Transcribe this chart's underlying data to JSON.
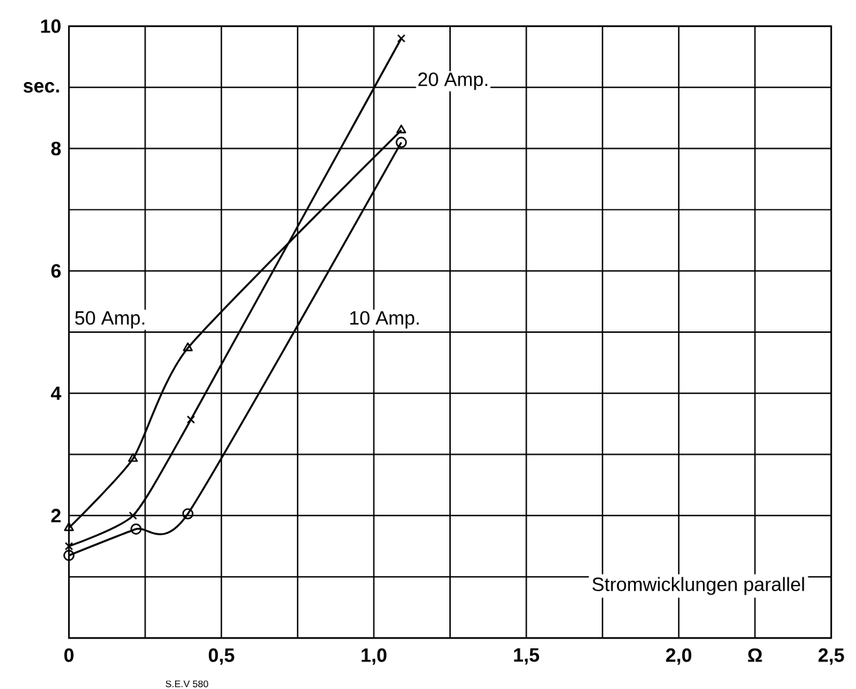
{
  "chart_data": {
    "type": "line",
    "ylabel": "sec.",
    "xlim": [
      0,
      2.5
    ],
    "ylim": [
      0,
      10
    ],
    "xticks": [
      0,
      {
        "value": 0.25,
        "label": null
      },
      {
        "value": 0.5,
        "label": "0,5"
      },
      {
        "value": 0.75,
        "label": null
      },
      {
        "value": 1.0,
        "label": "1,0"
      },
      {
        "value": 1.25,
        "label": null
      },
      {
        "value": 1.5,
        "label": "1,5"
      },
      {
        "value": 1.75,
        "label": null
      },
      {
        "value": 2.0,
        "label": "2,0"
      },
      {
        "value": 2.25,
        "label": "Ω"
      },
      {
        "value": 2.5,
        "label": "2,5"
      }
    ],
    "yticks": [
      {
        "value": 0,
        "label": null
      },
      {
        "value": 1,
        "label": null
      },
      2,
      {
        "value": 3,
        "label": null
      },
      4,
      {
        "value": 5,
        "label": null
      },
      6,
      {
        "value": 7,
        "label": null
      },
      8,
      {
        "value": 9,
        "label": null
      },
      10
    ],
    "grid": true,
    "series": [
      {
        "name": "50 Amp.",
        "color": "#000000",
        "marker": "triangle",
        "x": [
          0,
          0.21,
          0.39,
          1.09
        ],
        "values": [
          1.8,
          2.93,
          4.74,
          8.3
        ]
      },
      {
        "name": "20 Amp.",
        "color": "#000000",
        "marker": "cross",
        "x": [
          0,
          0.21,
          0.4,
          1.09
        ],
        "values": [
          1.5,
          2.0,
          3.57,
          9.8
        ]
      },
      {
        "name": "10 Amp.",
        "color": "#000000",
        "marker": "circle",
        "x": [
          0,
          0.22,
          0.39,
          1.09
        ],
        "values": [
          1.35,
          1.78,
          2.03,
          8.1
        ]
      }
    ],
    "annotations": [
      "Stromwicklungen parallel",
      "S.E.V 580"
    ]
  }
}
